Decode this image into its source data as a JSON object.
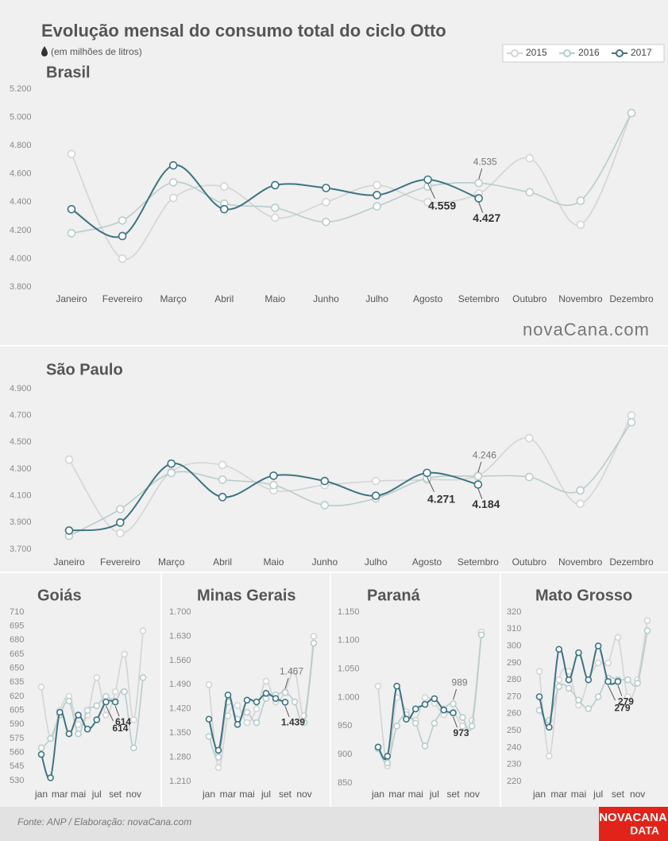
{
  "title": "Evolução mensal do consumo total do ciclo Otto",
  "subtitle": "(em milhões de litros)",
  "watermark": "novaCana.com",
  "source": "Fonte: ANP  / Elaboração: novaCana.com",
  "brand": [
    "NOVACANA",
    "DATA"
  ],
  "chart_data": [
    {
      "type": "line",
      "title": "Brasil",
      "categories": [
        "Janeiro",
        "Fevereiro",
        "Março",
        "Abril",
        "Maio",
        "Junho",
        "Julho",
        "Agosto",
        "Setembro",
        "Outubro",
        "Novembro",
        "Dezembro"
      ],
      "ylim": [
        3800,
        5200
      ],
      "yticks": [
        {
          "value": 3800,
          "label": "3.800"
        },
        {
          "value": 4000,
          "label": "4.000"
        },
        {
          "value": 4200,
          "label": "4.200"
        },
        {
          "value": 4400,
          "label": "4.400"
        },
        {
          "value": 4600,
          "label": "4.600"
        },
        {
          "value": 4800,
          "label": "4.800"
        },
        {
          "value": 5000,
          "label": "5.000"
        },
        {
          "value": 5200,
          "label": "5.200"
        }
      ],
      "series": [
        {
          "name": "2015",
          "color": "#d4d4d4",
          "values": [
            4740,
            4000,
            4430,
            4510,
            4290,
            4400,
            4520,
            4400,
            4460,
            4710,
            4240,
            5030
          ]
        },
        {
          "name": "2016",
          "color": "#b8cccc",
          "values": [
            4180,
            4270,
            4540,
            4390,
            4360,
            4260,
            4370,
            4510,
            4535,
            4470,
            4410,
            5030
          ],
          "value_labels": [
            null,
            null,
            null,
            null,
            null,
            null,
            null,
            null,
            "4.535",
            null,
            null,
            null
          ]
        },
        {
          "name": "2017",
          "color": "#3d7480",
          "values": [
            4350,
            4160,
            4660,
            4350,
            4520,
            4500,
            4450,
            4559,
            4427,
            null,
            null,
            null
          ],
          "value_labels": [
            null,
            null,
            null,
            null,
            null,
            null,
            null,
            "4.559",
            "4.427",
            null,
            null,
            null
          ]
        }
      ]
    },
    {
      "type": "line",
      "title": "São Paulo",
      "categories": [
        "Janeiro",
        "Fevereiro",
        "Março",
        "Abril",
        "Maio",
        "Junho",
        "Julho",
        "Agosto",
        "Setembro",
        "Outubro",
        "Novembro",
        "Dezembro"
      ],
      "ylim": [
        3700,
        4900
      ],
      "yticks": [
        {
          "value": 3700,
          "label": "3.700"
        },
        {
          "value": 3900,
          "label": "3.900"
        },
        {
          "value": 4100,
          "label": "4.100"
        },
        {
          "value": 4300,
          "label": "4.300"
        },
        {
          "value": 4500,
          "label": "4.500"
        },
        {
          "value": 4700,
          "label": "4.700"
        },
        {
          "value": 4900,
          "label": "4.900"
        }
      ],
      "series": [
        {
          "name": "2015",
          "color": "#d4d4d4",
          "values": [
            4370,
            3820,
            4280,
            4330,
            4140,
            4180,
            4210,
            4220,
            4250,
            4530,
            4040,
            4700
          ]
        },
        {
          "name": "2016",
          "color": "#b8cccc",
          "values": [
            3800,
            4000,
            4270,
            4220,
            4180,
            4030,
            4080,
            4230,
            4246,
            4240,
            4140,
            4650
          ],
          "value_labels": [
            null,
            null,
            null,
            null,
            null,
            null,
            null,
            null,
            "4.246",
            null,
            null,
            null
          ]
        },
        {
          "name": "2017",
          "color": "#3d7480",
          "values": [
            3840,
            3900,
            4340,
            4090,
            4250,
            4210,
            4100,
            4271,
            4184,
            null,
            null,
            null
          ],
          "value_labels": [
            null,
            null,
            null,
            null,
            null,
            null,
            null,
            "4.271",
            "4.184",
            null,
            null,
            null
          ]
        }
      ]
    },
    {
      "type": "line",
      "title": "Goiás",
      "categories": [
        "jan",
        null,
        "mar",
        null,
        "mai",
        null,
        "jul",
        null,
        "set",
        null,
        "nov",
        null
      ],
      "ylim": [
        530,
        710
      ],
      "yticks": [
        530,
        545,
        560,
        575,
        590,
        605,
        620,
        635,
        650,
        665,
        680,
        695,
        710
      ],
      "series": [
        {
          "name": "2015",
          "color": "#d4d4d4",
          "values": [
            630,
            575,
            605,
            620,
            590,
            600,
            640,
            600,
            625,
            665,
            595,
            690
          ]
        },
        {
          "name": "2016",
          "color": "#b8cccc",
          "values": [
            565,
            575,
            600,
            615,
            580,
            605,
            610,
            620,
            615,
            625,
            565,
            640
          ]
        },
        {
          "name": "2017",
          "color": "#3d7480",
          "values": [
            558,
            533,
            603,
            580,
            600,
            585,
            595,
            614,
            614,
            null,
            null,
            null
          ],
          "value_labels": [
            null,
            null,
            null,
            null,
            null,
            null,
            null,
            "614",
            "614",
            null,
            null,
            null
          ]
        }
      ]
    },
    {
      "type": "line",
      "title": "Minas Gerais",
      "categories": [
        "jan",
        null,
        "mar",
        null,
        "mai",
        null,
        "jul",
        null,
        "set",
        null,
        "nov",
        null
      ],
      "ylim": [
        1210,
        1700
      ],
      "yticks": [
        {
          "value": 1210,
          "label": "1.210"
        },
        {
          "value": 1280,
          "label": "1.280"
        },
        {
          "value": 1350,
          "label": "1.350"
        },
        {
          "value": 1420,
          "label": "1.420"
        },
        {
          "value": 1490,
          "label": "1.490"
        },
        {
          "value": 1560,
          "label": "1.560"
        },
        {
          "value": 1630,
          "label": "1.630"
        },
        {
          "value": 1700,
          "label": "1.700"
        }
      ],
      "series": [
        {
          "name": "2015",
          "color": "#d4d4d4",
          "values": [
            1490,
            1250,
            1400,
            1430,
            1380,
            1420,
            1500,
            1440,
            1470,
            1530,
            1400,
            1630
          ]
        },
        {
          "name": "2016",
          "color": "#b8cccc",
          "values": [
            1340,
            1280,
            1440,
            1390,
            1410,
            1380,
            1450,
            1460,
            1467,
            1440,
            1380,
            1610
          ],
          "value_labels": [
            null,
            null,
            null,
            null,
            null,
            null,
            null,
            null,
            "1.467",
            null,
            null,
            null
          ]
        },
        {
          "name": "2017",
          "color": "#3d7480",
          "values": [
            1390,
            1300,
            1460,
            1375,
            1445,
            1440,
            1465,
            1450,
            1439,
            null,
            null,
            null
          ],
          "value_labels": [
            null,
            null,
            null,
            null,
            null,
            null,
            null,
            null,
            "1.439",
            null,
            null,
            null
          ]
        }
      ]
    },
    {
      "type": "line",
      "title": "Paraná",
      "categories": [
        "jan",
        null,
        "mar",
        null,
        "mai",
        null,
        "jul",
        null,
        "set",
        null,
        "nov",
        null
      ],
      "ylim": [
        850,
        1150
      ],
      "yticks": [
        850,
        900,
        950,
        {
          "value": 1000,
          "label": "1.000"
        },
        {
          "value": 1050,
          "label": "1.050"
        },
        {
          "value": 1100,
          "label": "1.100"
        },
        {
          "value": 1150,
          "label": "1.150"
        }
      ],
      "series": [
        {
          "name": "2015",
          "color": "#d4d4d4",
          "values": [
            1020,
            880,
            1000,
            975,
            960,
            1000,
            990,
            970,
            975,
            950,
            960,
            1115
          ]
        },
        {
          "name": "2016",
          "color": "#b8cccc",
          "values": [
            910,
            885,
            950,
            970,
            955,
            915,
            955,
            980,
            989,
            965,
            950,
            1110
          ],
          "value_labels": [
            null,
            null,
            null,
            null,
            null,
            null,
            null,
            null,
            "989",
            null,
            null,
            null
          ]
        },
        {
          "name": "2017",
          "color": "#3d7480",
          "values": [
            913,
            897,
            1020,
            962,
            980,
            988,
            998,
            978,
            973,
            null,
            null,
            null
          ],
          "value_labels": [
            null,
            null,
            null,
            null,
            null,
            null,
            null,
            null,
            "973",
            null,
            null,
            null
          ]
        }
      ]
    },
    {
      "type": "line",
      "title": "Mato Grosso",
      "categories": [
        "jan",
        null,
        "mar",
        null,
        "mai",
        null,
        "jul",
        null,
        "set",
        null,
        "nov",
        null
      ],
      "ylim": [
        220,
        320
      ],
      "yticks": [
        220,
        230,
        240,
        250,
        260,
        270,
        280,
        290,
        300,
        310,
        320
      ],
      "series": [
        {
          "name": "2015",
          "color": "#d4d4d4",
          "values": [
            285,
            235,
            280,
            285,
            265,
            280,
            290,
            290,
            305,
            270,
            280,
            315
          ]
        },
        {
          "name": "2016",
          "color": "#b8cccc",
          "values": [
            262,
            256,
            276,
            275,
            268,
            263,
            270,
            281,
            280,
            280,
            278,
            309
          ]
        },
        {
          "name": "2017",
          "color": "#3d7480",
          "values": [
            270,
            252,
            298,
            280,
            296,
            280,
            300,
            279,
            279,
            null,
            null,
            null
          ],
          "value_labels": [
            null,
            null,
            null,
            null,
            null,
            null,
            null,
            "279",
            "279",
            null,
            null,
            null
          ]
        }
      ]
    }
  ]
}
